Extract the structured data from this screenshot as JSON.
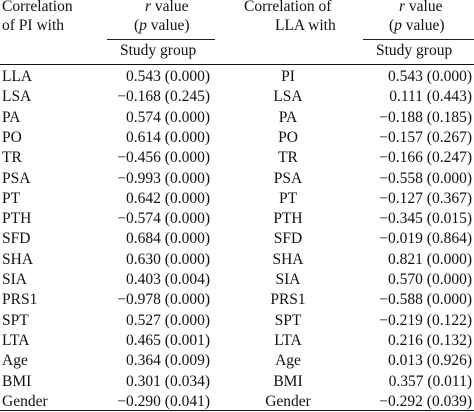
{
  "header": {
    "left_label_line1": "Correlation",
    "left_label_line2": "of PI with",
    "left_value_line1_r": "r",
    "left_value_line1_rest": " value",
    "left_value_line2_open": "(",
    "left_value_line2_p": "p",
    "left_value_line2_rest": " value)",
    "left_group": "Study group",
    "right_label_line1": "Correlation of",
    "right_label_line2": "LLA with",
    "right_value_line1_r": "r",
    "right_value_line1_rest": " value",
    "right_value_line2_open": "(",
    "right_value_line2_p": "p",
    "right_value_line2_rest": " value)",
    "right_group": "Study group"
  },
  "rows": [
    {
      "left_var": "LLA",
      "left_val": "0.543 (0.000)",
      "right_var": "PI",
      "right_val": "0.543 (0.000)"
    },
    {
      "left_var": "LSA",
      "left_val": "−0.168 (0.245)",
      "right_var": "LSA",
      "right_val": "0.111 (0.443)"
    },
    {
      "left_var": "PA",
      "left_val": "0.574 (0.000)",
      "right_var": "PA",
      "right_val": "−0.188 (0.185)"
    },
    {
      "left_var": "PO",
      "left_val": "0.614 (0.000)",
      "right_var": "PO",
      "right_val": "−0.157 (0.267)"
    },
    {
      "left_var": "TR",
      "left_val": "−0.456 (0.000)",
      "right_var": "TR",
      "right_val": "−0.166 (0.247)"
    },
    {
      "left_var": "PSA",
      "left_val": "−0.993 (0.000)",
      "right_var": "PSA",
      "right_val": "−0.558 (0.000)"
    },
    {
      "left_var": "PT",
      "left_val": "0.642 (0.000)",
      "right_var": "PT",
      "right_val": "−0.127 (0.367)"
    },
    {
      "left_var": "PTH",
      "left_val": "−0.574 (0.000)",
      "right_var": "PTH",
      "right_val": "−0.345 (0.015)"
    },
    {
      "left_var": "SFD",
      "left_val": "0.684 (0.000)",
      "right_var": "SFD",
      "right_val": "−0.019 (0.864)"
    },
    {
      "left_var": "SHA",
      "left_val": "0.630 (0.000)",
      "right_var": "SHA",
      "right_val": "0.821 (0.000)"
    },
    {
      "left_var": "SIA",
      "left_val": "0.403 (0.004)",
      "right_var": "SIA",
      "right_val": "0.570 (0.000)"
    },
    {
      "left_var": "PRS1",
      "left_val": "−0.978 (0.000)",
      "right_var": "PRS1",
      "right_val": "−0.588 (0.000)"
    },
    {
      "left_var": "SPT",
      "left_val": "0.527 (0.000)",
      "right_var": "SPT",
      "right_val": "−0.219 (0.122)"
    },
    {
      "left_var": "LTA",
      "left_val": "0.465 (0.001)",
      "right_var": "LTA",
      "right_val": "0.216 (0.132)"
    },
    {
      "left_var": "Age",
      "left_val": "0.364 (0.009)",
      "right_var": "Age",
      "right_val": "0.013 (0.926)"
    },
    {
      "left_var": "BMI",
      "left_val": "0.301 (0.034)",
      "right_var": "BMI",
      "right_val": "0.357 (0.011)"
    },
    {
      "left_var": "Gender",
      "left_val": "−0.290 (0.041)",
      "right_var": "Gender",
      "right_val": "−0.292 (0.039)"
    }
  ]
}
